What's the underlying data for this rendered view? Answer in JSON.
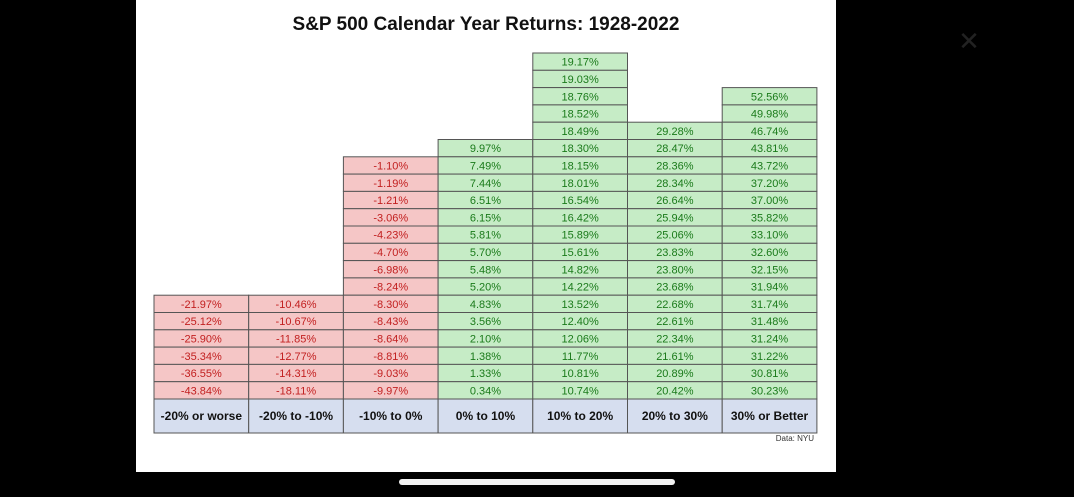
{
  "chart_data": {
    "type": "table",
    "title": "S&P 500 Calendar Year Returns: 1928-2022",
    "source": "Data: NYU",
    "colors": {
      "negative": "#f5c6c6",
      "positive": "#c6ecc6",
      "negative_text": "#c22020",
      "positive_text": "#1a7a1a",
      "header": "#d6deef"
    },
    "categories": [
      {
        "label": "-20% or worse",
        "sign": "negative",
        "values": [
          "-21.97%",
          "-25.12%",
          "-25.90%",
          "-35.34%",
          "-36.55%",
          "-43.84%"
        ]
      },
      {
        "label": "-20% to -10%",
        "sign": "negative",
        "values": [
          "-10.46%",
          "-10.67%",
          "-11.85%",
          "-12.77%",
          "-14.31%",
          "-18.11%"
        ]
      },
      {
        "label": "-10% to 0%",
        "sign": "negative",
        "values": [
          "-1.10%",
          "-1.19%",
          "-1.21%",
          "-3.06%",
          "-4.23%",
          "-4.70%",
          "-6.98%",
          "-8.24%",
          "-8.30%",
          "-8.43%",
          "-8.64%",
          "-8.81%",
          "-9.03%",
          "-9.97%"
        ]
      },
      {
        "label": "0% to 10%",
        "sign": "positive",
        "values": [
          "9.97%",
          "7.49%",
          "7.44%",
          "6.51%",
          "6.15%",
          "5.81%",
          "5.70%",
          "5.48%",
          "5.20%",
          "4.83%",
          "3.56%",
          "2.10%",
          "1.38%",
          "1.33%",
          "0.34%"
        ]
      },
      {
        "label": "10% to 20%",
        "sign": "positive",
        "values": [
          "19.17%",
          "19.03%",
          "18.76%",
          "18.52%",
          "18.49%",
          "18.30%",
          "18.15%",
          "18.01%",
          "16.54%",
          "16.42%",
          "15.89%",
          "15.61%",
          "14.82%",
          "14.22%",
          "13.52%",
          "12.40%",
          "12.06%",
          "11.77%",
          "10.81%",
          "10.74%"
        ]
      },
      {
        "label": "20% to 30%",
        "sign": "positive",
        "values": [
          "29.28%",
          "28.47%",
          "28.36%",
          "28.34%",
          "26.64%",
          "25.94%",
          "25.06%",
          "23.83%",
          "23.80%",
          "23.68%",
          "22.68%",
          "22.61%",
          "22.34%",
          "21.61%",
          "20.89%",
          "20.42%"
        ]
      },
      {
        "label": "30% or Better",
        "sign": "positive",
        "values": [
          "52.56%",
          "49.98%",
          "46.74%",
          "43.81%",
          "43.72%",
          "37.20%",
          "37.00%",
          "35.82%",
          "33.10%",
          "32.60%",
          "32.15%",
          "31.94%",
          "31.74%",
          "31.48%",
          "31.24%",
          "31.22%",
          "30.81%",
          "30.23%"
        ]
      }
    ]
  }
}
